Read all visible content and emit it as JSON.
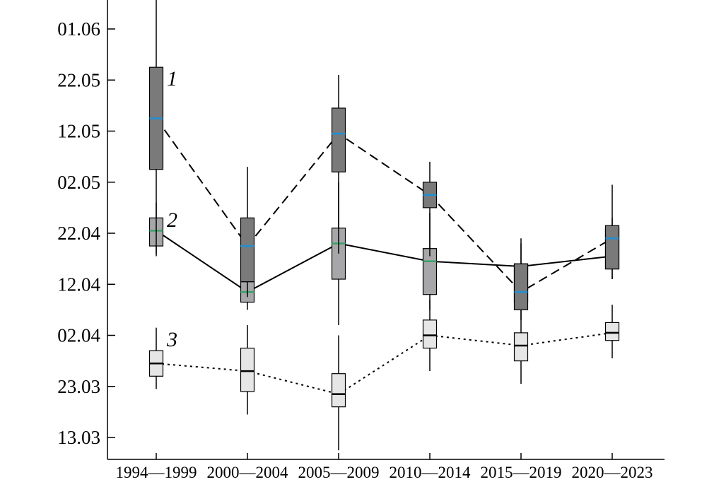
{
  "chart_data": {
    "type": "boxplot",
    "categories": [
      "1994—1999",
      "2000—2004",
      "2005—2009",
      "2010—2014",
      "2015—2019",
      "2020—2023"
    ],
    "y_axis": {
      "ticks": [
        "13.03",
        "23.03",
        "02.04",
        "12.04",
        "22.04",
        "02.05",
        "12.05",
        "22.05",
        "01.06"
      ],
      "tick_values": [
        0,
        10,
        20,
        30,
        40,
        50,
        60,
        70,
        80
      ],
      "ylim": [
        -3.5,
        86.5
      ]
    },
    "grid": false,
    "series": [
      {
        "name": "1",
        "fill": "#7a7a7a",
        "median_color": "#1e90d6",
        "line_style": "dashed",
        "boxes": [
          {
            "whisker_low": 35.5,
            "q1": 52.5,
            "median": 62.5,
            "q3": 72.5,
            "whisker_high": 89
          },
          {
            "whisker_low": 27.5,
            "q1": 30.5,
            "median": 37.5,
            "q3": 43,
            "whisker_high": 53
          },
          {
            "whisker_low": 36,
            "q1": 52,
            "median": 59.5,
            "q3": 64.5,
            "whisker_high": 71
          },
          {
            "whisker_low": 35.5,
            "q1": 45,
            "median": 47.5,
            "q3": 50,
            "whisker_high": 54
          },
          {
            "whisker_low": 23,
            "q1": 25,
            "median": 28.5,
            "q3": 34,
            "whisker_high": 38
          },
          {
            "whisker_low": 31,
            "q1": 33,
            "median": 39,
            "q3": 41.5,
            "whisker_high": 49.5
          }
        ]
      },
      {
        "name": "2",
        "fill": "#a7a7a9",
        "median_color": "#3aa06a",
        "line_style": "solid",
        "boxes": [
          {
            "whisker_low": 36,
            "q1": 37.5,
            "median": 40.5,
            "q3": 43,
            "whisker_high": 46
          },
          {
            "whisker_low": 25,
            "q1": 26.5,
            "median": 28.5,
            "q3": 30.5,
            "whisker_high": 33
          },
          {
            "whisker_low": 22,
            "q1": 31,
            "median": 38,
            "q3": 41,
            "whisker_high": 50
          },
          {
            "whisker_low": 25,
            "q1": 28,
            "median": 34.5,
            "q3": 37,
            "whisker_high": 44
          },
          {
            "whisker_low": 24,
            "q1": 26.5,
            "median": 33.5,
            "q3": 34,
            "whisker_high": 39
          },
          {
            "whisker_low": 31,
            "q1": 33,
            "median": 35.5,
            "q3": 41,
            "whisker_high": 43
          }
        ]
      },
      {
        "name": "3",
        "fill": "#e6e6e6",
        "median_color": "#000000",
        "line_style": "dotted",
        "boxes": [
          {
            "whisker_low": 9.5,
            "q1": 12,
            "median": 14.5,
            "q3": 17,
            "whisker_high": 21.5
          },
          {
            "whisker_low": 4.5,
            "q1": 9,
            "median": 13,
            "q3": 17.5,
            "whisker_high": 22
          },
          {
            "whisker_low": -2.5,
            "q1": 6,
            "median": 8.5,
            "q3": 12.5,
            "whisker_high": 20
          },
          {
            "whisker_low": 13,
            "q1": 17.5,
            "median": 20,
            "q3": 23,
            "whisker_high": 27
          },
          {
            "whisker_low": 10.5,
            "q1": 15,
            "median": 18,
            "q3": 20.5,
            "whisker_high": 24
          },
          {
            "whisker_low": 15.5,
            "q1": 19,
            "median": 20.5,
            "q3": 22.5,
            "whisker_high": 26
          }
        ]
      }
    ]
  }
}
